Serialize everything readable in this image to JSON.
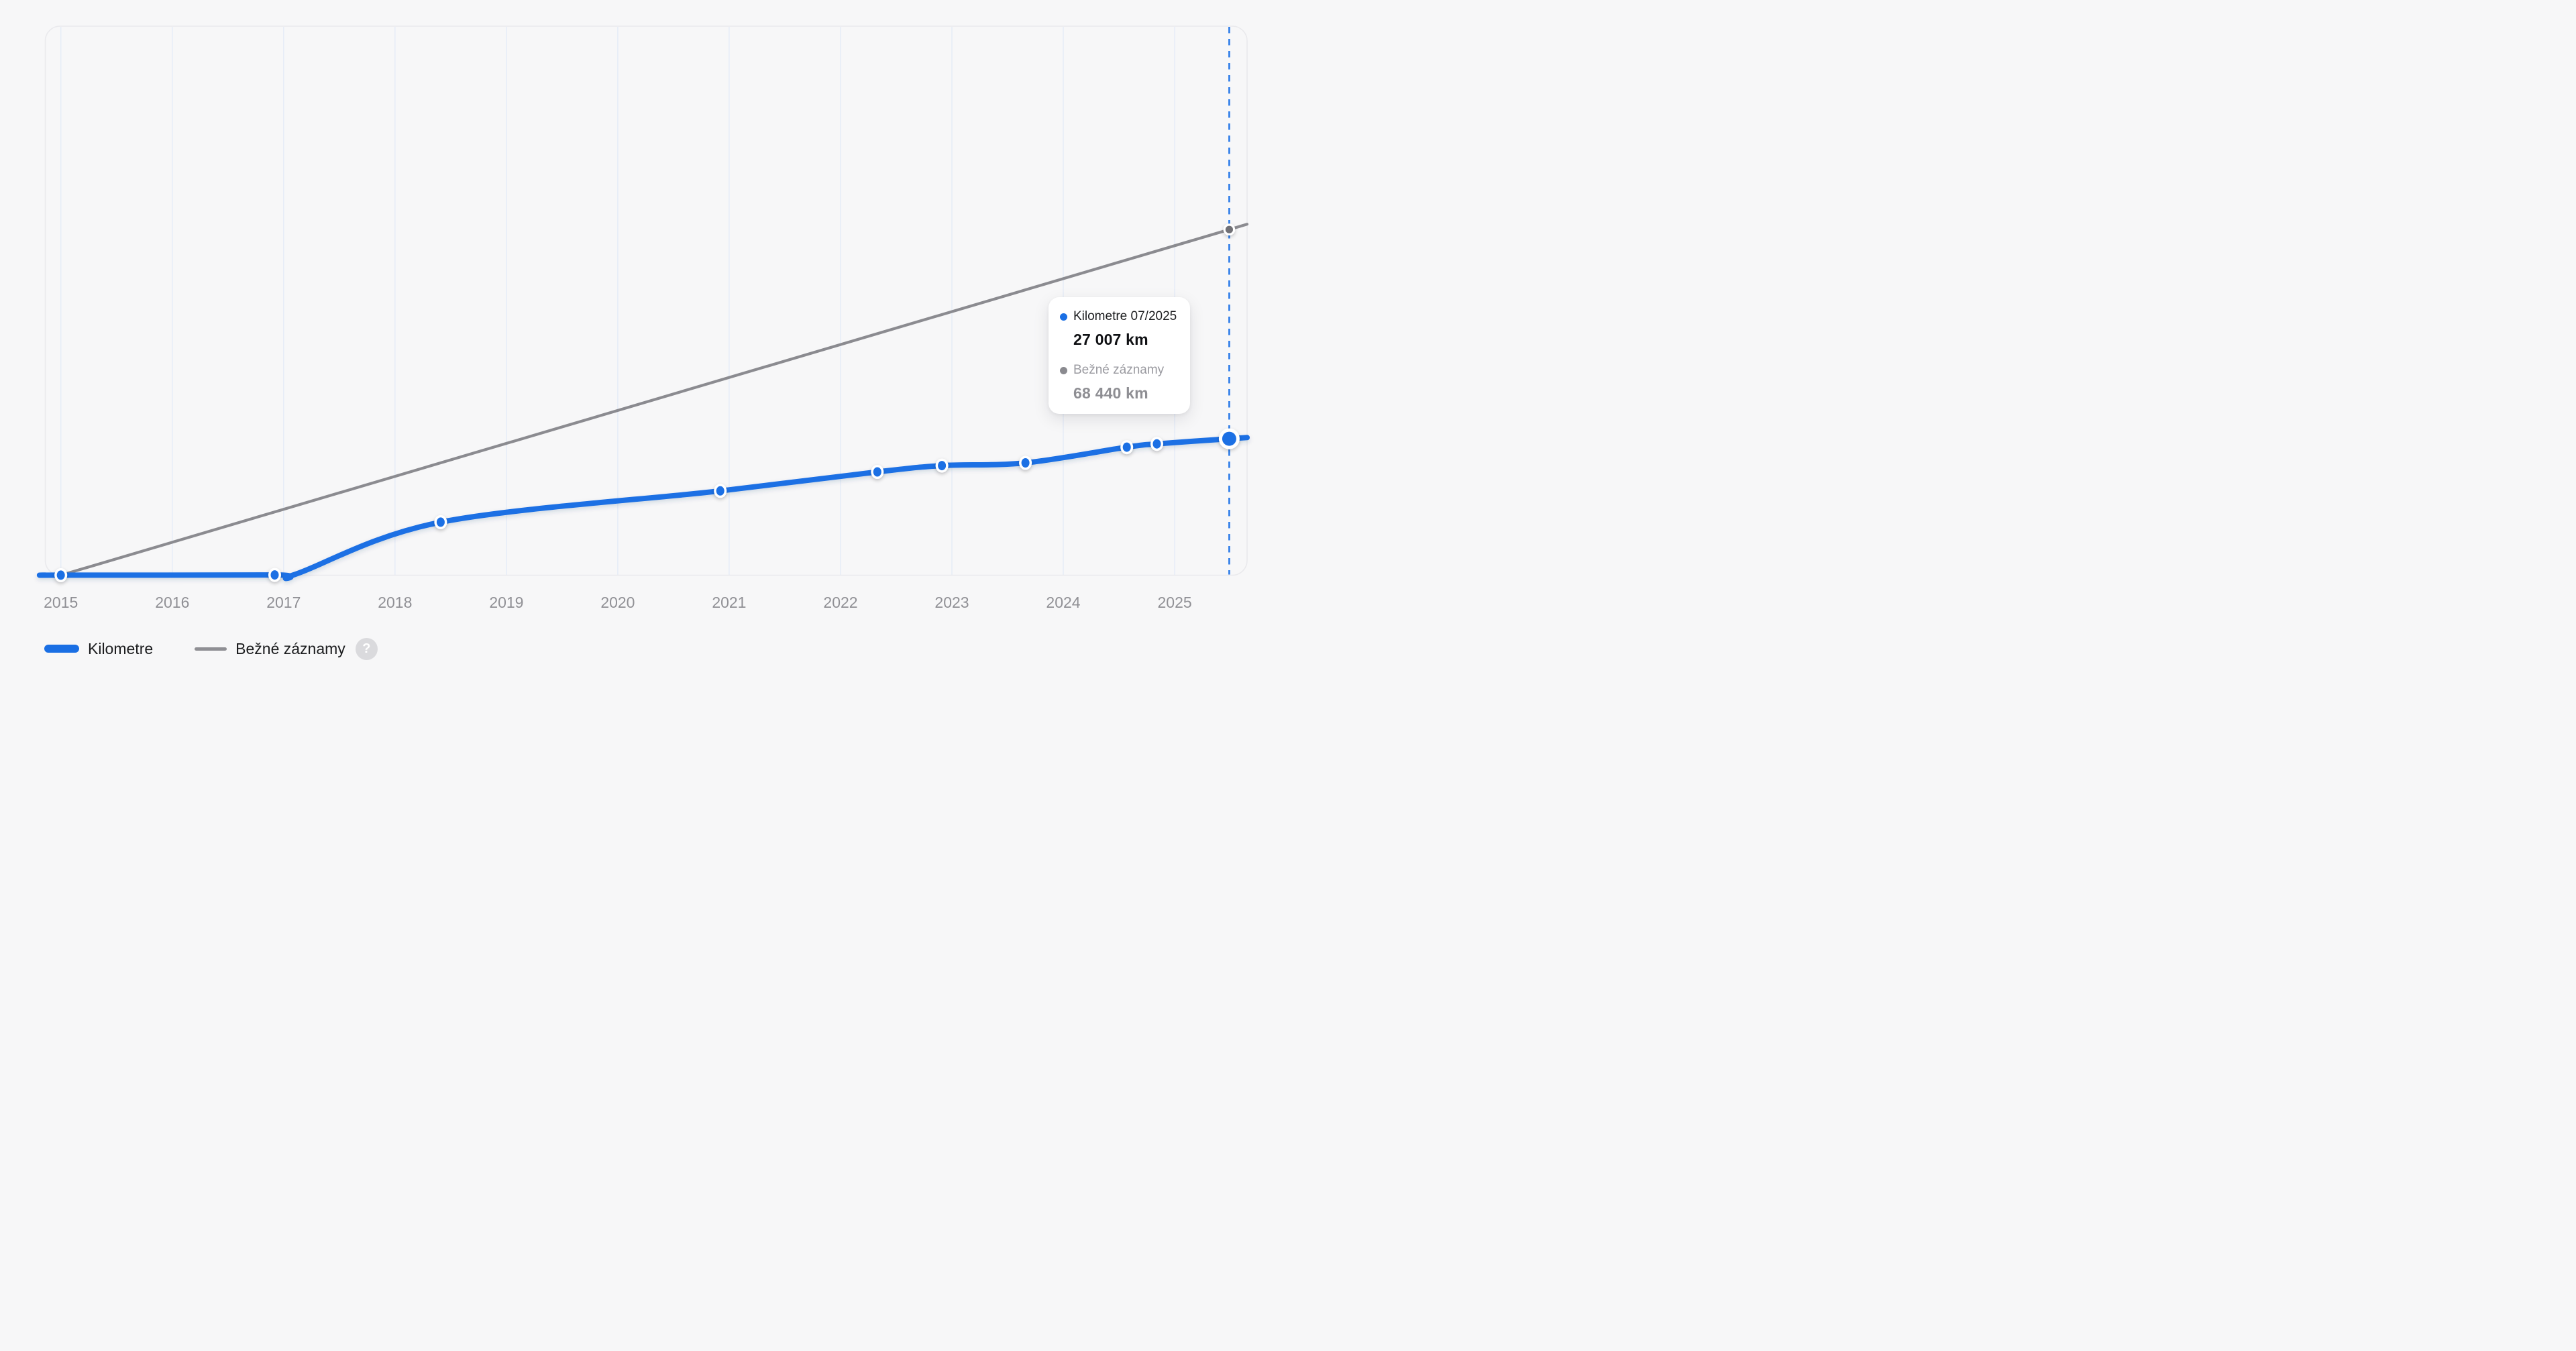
{
  "colors": {
    "background": "#f7f7f8",
    "accent_blue": "#1a6fe4",
    "dashed_cursor_blue": "#2a7ae8",
    "gray_line": "#8b8b90",
    "gray_dot": "#707075",
    "gridline": "#e7edf7",
    "panel_border": "#eaeaed",
    "axis_text": "#909095",
    "dark_text": "#1b1c1e",
    "muted_value_text": "#8e8e93"
  },
  "chart_data": {
    "type": "line",
    "title": "",
    "xlabel": "",
    "ylabel": "",
    "y_unit": "km",
    "grid": "vertical-only",
    "legend_position": "bottom-left",
    "xlim": [
      2014.86,
      2025.65
    ],
    "ylim": [
      0,
      108700
    ],
    "x_ticks": [
      2015,
      2016,
      2017,
      2018,
      2019,
      2020,
      2021,
      2022,
      2023,
      2024,
      2025
    ],
    "cursor_x": 2025.49,
    "series": [
      {
        "name": "Kilometre",
        "color": "#1a6fe4",
        "style": "solid-thick-smooth",
        "points": [
          {
            "x": 2014.86,
            "km": 10,
            "dot": false
          },
          {
            "x": 2015.0,
            "km": 10,
            "dot": true
          },
          {
            "x": 2016.92,
            "km": 50,
            "dot": true
          },
          {
            "x": 2017.1,
            "km": 150,
            "dot": false
          },
          {
            "x": 2018.41,
            "km": 10500,
            "dot": true
          },
          {
            "x": 2020.92,
            "km": 16700,
            "dot": true
          },
          {
            "x": 2022.33,
            "km": 20450,
            "dot": true
          },
          {
            "x": 2022.91,
            "km": 21700,
            "dot": true
          },
          {
            "x": 2023.66,
            "km": 22250,
            "dot": true
          },
          {
            "x": 2024.57,
            "km": 25350,
            "dot": true
          },
          {
            "x": 2024.84,
            "km": 26000,
            "dot": true
          },
          {
            "x": 2025.49,
            "km": 27007,
            "dot": "current"
          },
          {
            "x": 2025.65,
            "km": 27250,
            "dot": false
          }
        ]
      },
      {
        "name": "Bežné záznamy",
        "color": "#8b8b90",
        "style": "solid-thin-straight",
        "points": [
          {
            "x": 2015.0,
            "km": 0,
            "dot": false
          },
          {
            "x": 2025.49,
            "km": 68440,
            "dot": true
          },
          {
            "x": 2025.65,
            "km": 69500,
            "dot": false
          }
        ]
      }
    ]
  },
  "tooltip": {
    "series1_label": "Kilometre 07/2025",
    "series1_value": "27 007 km",
    "series2_label": "Bežné záznamy",
    "series2_value": "68 440 km"
  },
  "legend": {
    "kilometre_label": "Kilometre",
    "bezne_label": "Bežné záznamy",
    "help_icon": "?"
  }
}
